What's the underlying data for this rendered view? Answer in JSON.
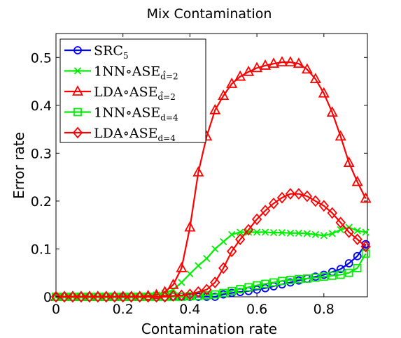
{
  "chart_data": {
    "type": "line",
    "title": "Mix Contamination",
    "xlabel": "Contamination rate",
    "ylabel": "Error rate",
    "xlim": [
      0,
      0.93
    ],
    "ylim": [
      0,
      0.55
    ],
    "x_ticks": [
      "0",
      "0.2",
      "0.4",
      "0.6",
      "0.8"
    ],
    "x_tick_values": [
      0,
      0.2,
      0.4,
      0.6,
      0.8
    ],
    "y_ticks": [
      "0",
      "0.1",
      "0.2",
      "0.3",
      "0.4",
      "0.5"
    ],
    "y_tick_values": [
      0,
      0.1,
      0.2,
      0.3,
      0.4,
      0.5
    ],
    "grid": false,
    "legend_position": "top-left",
    "x": [
      0,
      0.025,
      0.05,
      0.075,
      0.1,
      0.125,
      0.15,
      0.175,
      0.2,
      0.225,
      0.25,
      0.275,
      0.3,
      0.325,
      0.35,
      0.375,
      0.4,
      0.425,
      0.45,
      0.475,
      0.5,
      0.525,
      0.55,
      0.575,
      0.6,
      0.625,
      0.65,
      0.675,
      0.7,
      0.725,
      0.75,
      0.775,
      0.8,
      0.825,
      0.85,
      0.875,
      0.9,
      0.925
    ],
    "series": [
      {
        "name": "SRC",
        "name_sub": "5",
        "color": "#0000ff",
        "marker": "circle",
        "values": [
          0,
          0,
          0,
          0,
          0,
          0,
          0,
          0,
          0,
          0,
          0,
          0,
          0,
          0,
          0,
          0,
          0,
          0,
          0,
          0,
          0.005,
          0.008,
          0.01,
          0.012,
          0.015,
          0.018,
          0.022,
          0.026,
          0.03,
          0.034,
          0.038,
          0.042,
          0.046,
          0.052,
          0.058,
          0.07,
          0.085,
          0.11
        ]
      },
      {
        "name": "1NN∘ASE",
        "name_sub": "d̂=2",
        "color": "#00ee00",
        "marker": "x",
        "values": [
          0,
          0,
          0,
          0,
          0,
          0,
          0,
          0,
          0,
          0,
          0,
          0.002,
          0.004,
          0.008,
          0.015,
          0.03,
          0.048,
          0.065,
          0.08,
          0.1,
          0.115,
          0.13,
          0.135,
          0.135,
          0.135,
          0.135,
          0.134,
          0.134,
          0.133,
          0.133,
          0.132,
          0.13,
          0.128,
          0.132,
          0.14,
          0.145,
          0.138,
          0.135
        ]
      },
      {
        "name": "LDA∘ASE",
        "name_sub": "d̂=2",
        "color": "#ff0000",
        "marker": "triangle",
        "values": [
          0,
          0,
          0,
          0,
          0,
          0,
          0,
          0,
          0,
          0,
          0,
          0.002,
          0.004,
          0.01,
          0.025,
          0.06,
          0.145,
          0.26,
          0.335,
          0.39,
          0.42,
          0.445,
          0.46,
          0.47,
          0.478,
          0.483,
          0.487,
          0.49,
          0.49,
          0.487,
          0.475,
          0.455,
          0.425,
          0.385,
          0.335,
          0.28,
          0.24,
          0.205
        ]
      },
      {
        "name": "1NN∘ASE",
        "name_sub": "d=4",
        "color": "#00ee00",
        "marker": "square",
        "values": [
          0,
          0,
          0,
          0,
          0,
          0,
          0,
          0,
          0,
          0,
          0,
          0,
          0,
          0,
          0,
          0,
          0.001,
          0.002,
          0.003,
          0.005,
          0.008,
          0.012,
          0.016,
          0.02,
          0.024,
          0.027,
          0.03,
          0.033,
          0.035,
          0.037,
          0.038,
          0.04,
          0.042,
          0.044,
          0.046,
          0.05,
          0.06,
          0.09
        ]
      },
      {
        "name": "LDA∘ASE",
        "name_sub": "d=4",
        "color": "#ff0000",
        "marker": "diamond",
        "values": [
          0,
          0,
          0,
          0,
          0,
          0,
          0,
          0,
          0,
          0,
          0,
          0,
          0,
          0,
          0.002,
          0.003,
          0.005,
          0.01,
          0.015,
          0.03,
          0.06,
          0.095,
          0.12,
          0.14,
          0.162,
          0.18,
          0.195,
          0.207,
          0.215,
          0.215,
          0.21,
          0.2,
          0.19,
          0.175,
          0.155,
          0.135,
          0.12,
          0.105
        ]
      }
    ]
  }
}
